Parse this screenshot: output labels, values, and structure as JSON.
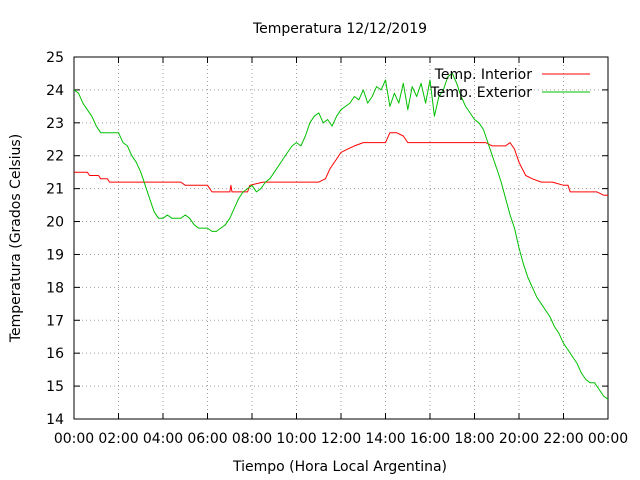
{
  "chart_data": {
    "type": "line",
    "title": "Temperatura 12/12/2019",
    "xlabel": "Tiempo (Hora Local Argentina)",
    "ylabel": "Temperatura (Grados Celsius)",
    "xlim": [
      0,
      24
    ],
    "ylim": [
      14,
      25
    ],
    "grid": true,
    "legend_position": "top-right",
    "x_tick_labels": [
      "00:00",
      "02:00",
      "04:00",
      "06:00",
      "08:00",
      "10:00",
      "12:00",
      "14:00",
      "16:00",
      "18:00",
      "20:00",
      "22:00",
      "00:00"
    ],
    "y_tick_labels": [
      "14",
      "15",
      "16",
      "17",
      "18",
      "19",
      "20",
      "21",
      "22",
      "23",
      "24",
      "25"
    ],
    "series": [
      {
        "name": "Temp. Interior",
        "color": "#ff0000",
        "x": [
          0.0,
          0.6,
          0.7,
          1.1,
          1.2,
          1.5,
          1.6,
          2.0,
          2.8,
          3.6,
          4.2,
          4.8,
          5.0,
          5.5,
          6.0,
          6.1,
          6.2,
          6.8,
          7.0,
          7.05,
          7.1,
          7.3,
          7.8,
          7.9,
          8.5,
          9.0,
          9.5,
          10.0,
          10.5,
          11.0,
          11.3,
          11.5,
          11.8,
          12.0,
          12.3,
          12.6,
          13.0,
          13.5,
          14.0,
          14.2,
          14.5,
          14.8,
          15.0,
          15.5,
          16.0,
          16.5,
          17.0,
          17.5,
          18.0,
          18.5,
          18.8,
          19.0,
          19.4,
          19.6,
          19.8,
          20.0,
          20.3,
          20.6,
          21.0,
          21.5,
          22.0,
          22.2,
          22.3,
          22.5,
          23.0,
          23.5,
          23.8,
          24.0
        ],
        "y": [
          21.5,
          21.5,
          21.4,
          21.4,
          21.3,
          21.3,
          21.2,
          21.2,
          21.2,
          21.2,
          21.2,
          21.2,
          21.1,
          21.1,
          21.1,
          21.0,
          20.9,
          20.9,
          20.9,
          21.1,
          20.9,
          20.9,
          20.9,
          21.1,
          21.2,
          21.2,
          21.2,
          21.2,
          21.2,
          21.2,
          21.3,
          21.6,
          21.9,
          22.1,
          22.2,
          22.3,
          22.4,
          22.4,
          22.4,
          22.7,
          22.7,
          22.6,
          22.4,
          22.4,
          22.4,
          22.4,
          22.4,
          22.4,
          22.4,
          22.4,
          22.3,
          22.3,
          22.3,
          22.4,
          22.2,
          21.8,
          21.4,
          21.3,
          21.2,
          21.2,
          21.1,
          21.1,
          20.9,
          20.9,
          20.9,
          20.9,
          20.8,
          20.8
        ]
      },
      {
        "name": "Temp. Exterior",
        "color": "#00c000",
        "x": [
          0.0,
          0.2,
          0.4,
          0.6,
          0.8,
          1.0,
          1.2,
          1.4,
          1.6,
          1.8,
          2.0,
          2.2,
          2.4,
          2.6,
          2.8,
          3.0,
          3.2,
          3.4,
          3.6,
          3.8,
          4.0,
          4.2,
          4.4,
          4.6,
          4.8,
          5.0,
          5.2,
          5.4,
          5.6,
          5.8,
          6.0,
          6.2,
          6.4,
          6.6,
          6.8,
          7.0,
          7.2,
          7.4,
          7.6,
          7.8,
          8.0,
          8.2,
          8.4,
          8.6,
          8.8,
          9.0,
          9.2,
          9.4,
          9.6,
          9.8,
          10.0,
          10.2,
          10.4,
          10.6,
          10.8,
          11.0,
          11.2,
          11.4,
          11.6,
          11.8,
          12.0,
          12.2,
          12.4,
          12.6,
          12.8,
          13.0,
          13.2,
          13.4,
          13.6,
          13.8,
          14.0,
          14.2,
          14.4,
          14.6,
          14.8,
          15.0,
          15.2,
          15.4,
          15.6,
          15.8,
          16.0,
          16.2,
          16.4,
          16.6,
          16.8,
          17.0,
          17.2,
          17.4,
          17.6,
          17.8,
          18.0,
          18.2,
          18.4,
          18.6,
          18.8,
          19.0,
          19.2,
          19.4,
          19.6,
          19.8,
          20.0,
          20.2,
          20.4,
          20.6,
          20.8,
          21.0,
          21.2,
          21.4,
          21.6,
          21.8,
          22.0,
          22.2,
          22.4,
          22.6,
          22.8,
          23.0,
          23.2,
          23.4,
          23.6,
          23.8,
          24.0
        ],
        "y": [
          24.0,
          23.9,
          23.6,
          23.4,
          23.2,
          22.9,
          22.7,
          22.7,
          22.7,
          22.7,
          22.7,
          22.4,
          22.3,
          22.0,
          21.8,
          21.5,
          21.1,
          20.7,
          20.3,
          20.1,
          20.1,
          20.2,
          20.1,
          20.1,
          20.1,
          20.2,
          20.1,
          19.9,
          19.8,
          19.8,
          19.8,
          19.7,
          19.7,
          19.8,
          19.9,
          20.1,
          20.4,
          20.7,
          20.9,
          21.0,
          21.1,
          20.9,
          21.0,
          21.2,
          21.3,
          21.5,
          21.7,
          21.9,
          22.1,
          22.3,
          22.4,
          22.3,
          22.6,
          23.0,
          23.2,
          23.3,
          23.0,
          23.1,
          22.9,
          23.2,
          23.4,
          23.5,
          23.6,
          23.8,
          23.7,
          24.0,
          23.6,
          23.8,
          24.1,
          24.0,
          24.3,
          23.5,
          23.9,
          23.6,
          24.2,
          23.4,
          24.1,
          23.8,
          24.2,
          23.6,
          24.3,
          23.2,
          23.8,
          24.0,
          24.4,
          24.5,
          24.2,
          23.8,
          23.5,
          23.3,
          23.1,
          23.0,
          22.8,
          22.4,
          22.0,
          21.6,
          21.2,
          20.7,
          20.2,
          19.8,
          19.2,
          18.7,
          18.3,
          18.0,
          17.7,
          17.5,
          17.3,
          17.1,
          16.8,
          16.6,
          16.3,
          16.1,
          15.9,
          15.7,
          15.4,
          15.2,
          15.1,
          15.1,
          14.9,
          14.7,
          14.6
        ]
      }
    ]
  }
}
